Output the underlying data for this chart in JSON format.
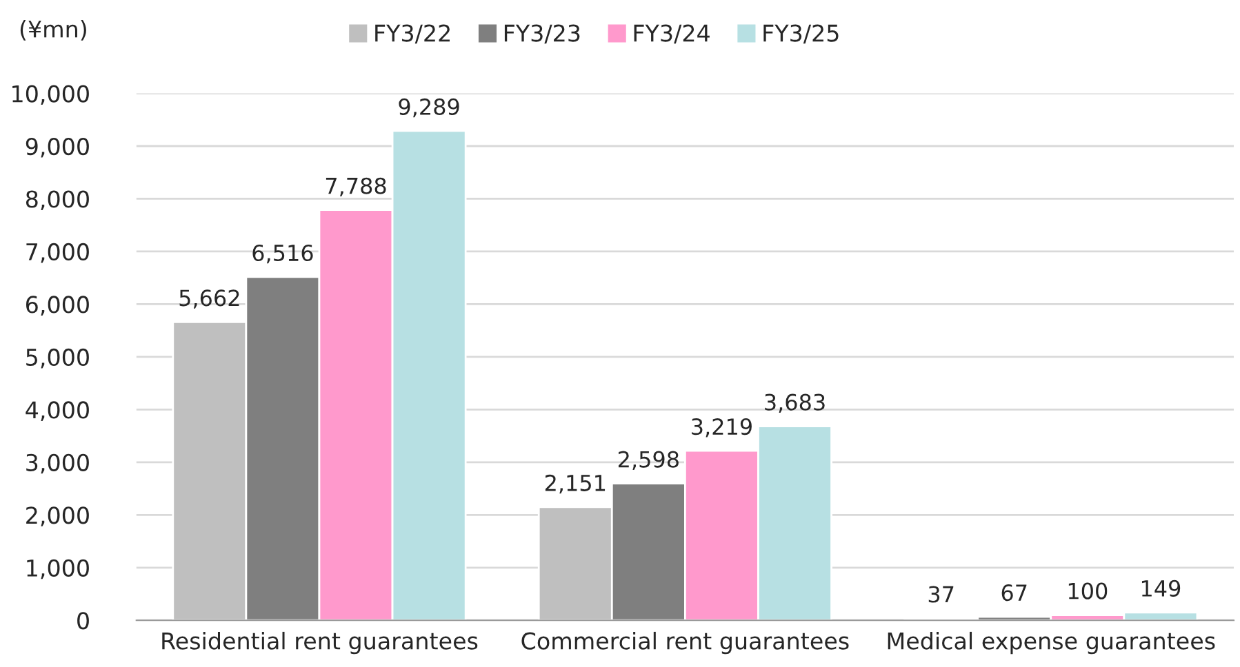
{
  "chart_data": {
    "type": "bar",
    "ylabel": "(¥mn)",
    "categories": [
      "Residential rent guarantees",
      "Commercial rent guarantees",
      "Medical expense guarantees"
    ],
    "series": [
      {
        "name": "FY3/22",
        "color": "#bfbfbf",
        "values": [
          5662,
          2151,
          37
        ],
        "value_labels": [
          "5,662",
          "2,151",
          "37"
        ]
      },
      {
        "name": "FY3/23",
        "color": "#7f7f7f",
        "values": [
          6516,
          2598,
          67
        ],
        "value_labels": [
          "6,516",
          "2,598",
          "67"
        ]
      },
      {
        "name": "FY3/24",
        "color": "#ff99cc",
        "values": [
          7788,
          3219,
          100
        ],
        "value_labels": [
          "7,788",
          "3,219",
          "100"
        ]
      },
      {
        "name": "FY3/25",
        "color": "#b7e0e3",
        "values": [
          9289,
          3683,
          149
        ],
        "value_labels": [
          "9,289",
          "3,683",
          "149"
        ]
      }
    ],
    "ylim": [
      0,
      10000
    ],
    "yticks": [
      {
        "value": 0,
        "label": "0"
      },
      {
        "value": 1000,
        "label": "1,000"
      },
      {
        "value": 2000,
        "label": "2,000"
      },
      {
        "value": 3000,
        "label": "3,000"
      },
      {
        "value": 4000,
        "label": "4,000"
      },
      {
        "value": 5000,
        "label": "5,000"
      },
      {
        "value": 6000,
        "label": "6,000"
      },
      {
        "value": 7000,
        "label": "7,000"
      },
      {
        "value": 8000,
        "label": "8,000"
      },
      {
        "value": 9000,
        "label": "9,000"
      },
      {
        "value": 10000,
        "label": "10,000"
      }
    ],
    "grid": "y",
    "legend": "top"
  }
}
